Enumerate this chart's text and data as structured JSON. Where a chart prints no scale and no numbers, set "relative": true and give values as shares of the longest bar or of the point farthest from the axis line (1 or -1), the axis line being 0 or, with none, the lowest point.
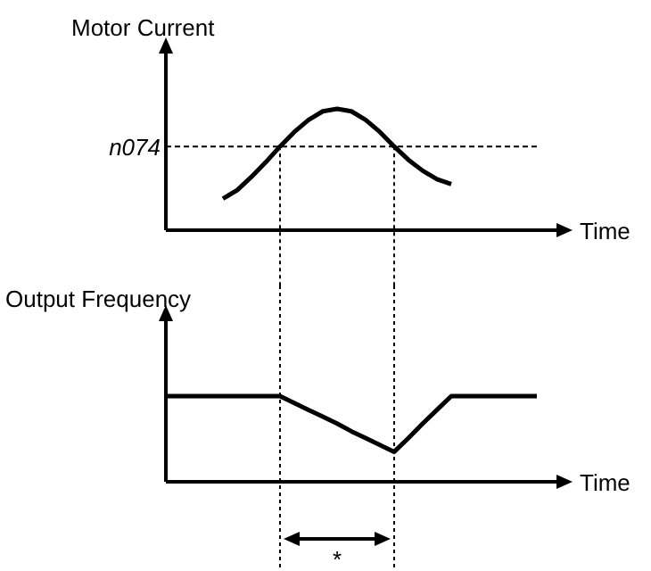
{
  "chart_data": [
    {
      "type": "line",
      "relative": true,
      "ylabel": "Motor Current",
      "xlabel": "Time",
      "categories": [
        null,
        null,
        null,
        null,
        null,
        null,
        null,
        null,
        null,
        null,
        null,
        null,
        null,
        null,
        null,
        null,
        null,
        null,
        null,
        null,
        null,
        null,
        null,
        null,
        null,
        null,
        null,
        null
      ],
      "series": [
        {
          "color": "#000000",
          "values": [
            null,
            null,
            null,
            null,
            0.26,
            0.33,
            0.44,
            0.56,
            0.69,
            0.81,
            0.91,
            0.98,
            1.0,
            0.98,
            0.91,
            0.81,
            0.69,
            0.58,
            0.49,
            0.42,
            0.38,
            null,
            null,
            null,
            null,
            null,
            null,
            null
          ]
        }
      ],
      "ref_lines": [
        {
          "axis": "y",
          "value": 0.69,
          "label": "n074",
          "line_style": "dashed"
        }
      ],
      "grid": false,
      "legend": false,
      "marker": "none"
    },
    {
      "type": "line",
      "relative": true,
      "ylabel": "Output Frequency",
      "xlabel": "Time",
      "categories": [
        null,
        null,
        null,
        null,
        null,
        null,
        null,
        null,
        null,
        null,
        null,
        null,
        null,
        null,
        null,
        null,
        null,
        null,
        null,
        null,
        null,
        null,
        null,
        null,
        null,
        null,
        null,
        null
      ],
      "series": [
        {
          "color": "#000000",
          "values": [
            1,
            1,
            1,
            1,
            1,
            1,
            1,
            1,
            1,
            0.92,
            0.84,
            0.76,
            0.68,
            0.59,
            0.51,
            0.43,
            0.35,
            0.51,
            0.68,
            0.84,
            1,
            1,
            1,
            1,
            1,
            1,
            1,
            null
          ]
        }
      ],
      "annotations": [
        "*"
      ],
      "grid": false,
      "legend": false,
      "marker": "none"
    }
  ]
}
